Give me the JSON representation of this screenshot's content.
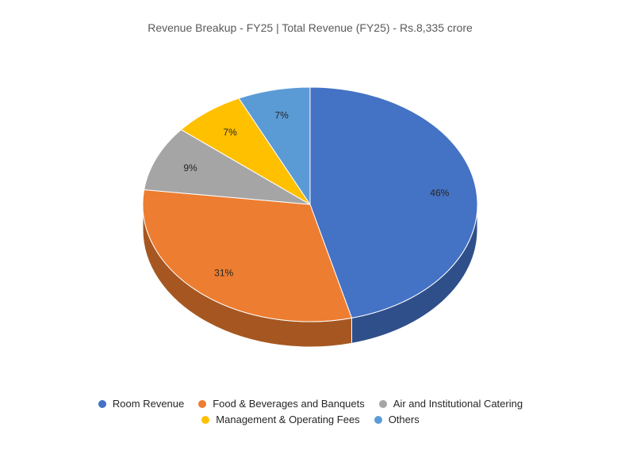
{
  "chart_data": {
    "type": "pie",
    "title": "Revenue Breakup - FY25 | Total Revenue (FY25) - Rs.8,335 crore",
    "categories": [
      "Room Revenue",
      "Food & Beverages and Banquets",
      "Air and Institutional Catering",
      "Management & Operating Fees",
      "Others"
    ],
    "values": [
      46,
      31,
      9,
      7,
      7
    ],
    "value_labels": [
      "46%",
      "31%",
      "9%",
      "7%",
      "7%"
    ],
    "colors": [
      "#4472C4",
      "#ED7D31",
      "#A5A5A5",
      "#FFC000",
      "#5B9BD5"
    ],
    "side_colors": [
      "#2F4F8A",
      "#A65721",
      "#747474",
      "#B38600",
      "#3F6D95"
    ],
    "style": "3d",
    "legend_position": "bottom"
  },
  "legend": {
    "row1": [
      "Room Revenue",
      "Food & Beverages and Banquets",
      "Air and Institutional Catering"
    ],
    "row2": [
      "Management & Operating Fees",
      "Others"
    ]
  }
}
